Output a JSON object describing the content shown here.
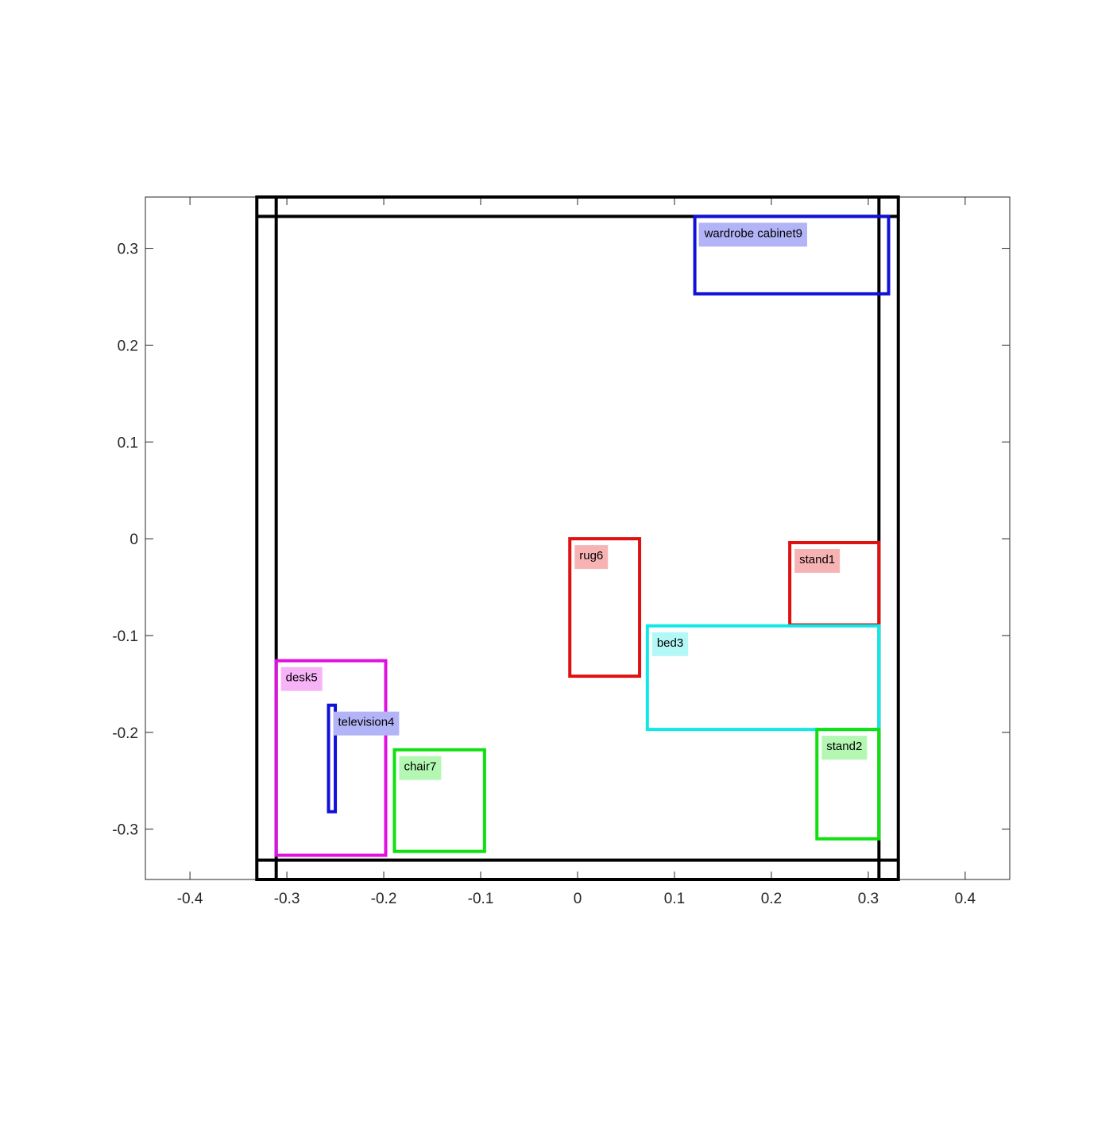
{
  "chart_data": {
    "type": "diagram",
    "title": "",
    "xlabel": "",
    "ylabel": "",
    "xlim": [
      -0.446,
      0.446
    ],
    "ylim": [
      -0.352,
      0.353
    ],
    "xticks": [
      -0.4,
      -0.3,
      -0.2,
      -0.1,
      0,
      0.1,
      0.2,
      0.3,
      0.4
    ],
    "yticks": [
      -0.3,
      -0.2,
      -0.1,
      0,
      0.1,
      0.2,
      0.3
    ],
    "xtick_labels": [
      "-0.4",
      "-0.3",
      "-0.2",
      "-0.1",
      "0",
      "0.1",
      "0.2",
      "0.3",
      "0.4"
    ],
    "ytick_labels": [
      "-0.3",
      "-0.2",
      "-0.1",
      "0",
      "0.1",
      "0.2",
      "0.3"
    ],
    "grid": false,
    "walls": {
      "color": "#000000",
      "outer": {
        "x": [
          -0.331,
          0.331
        ],
        "y": [
          -0.352,
          0.353
        ]
      },
      "inner": {
        "x": [
          -0.311,
          0.311
        ],
        "y": [
          -0.332,
          0.333
        ]
      }
    },
    "objects": [
      {
        "label": "wardrobe cabinet9",
        "color": "#1010d8",
        "label_bg": "#b3b3f7",
        "x": [
          0.121,
          0.321
        ],
        "y": [
          0.253,
          0.333
        ]
      },
      {
        "label": "rug6",
        "color": "#e01010",
        "label_bg": "#f7b3b3",
        "x": [
          -0.008,
          0.064
        ],
        "y": [
          -0.142,
          0.0
        ]
      },
      {
        "label": "stand1",
        "color": "#e01010",
        "label_bg": "#f7b3b3",
        "x": [
          0.219,
          0.311
        ],
        "y": [
          -0.089,
          -0.004
        ]
      },
      {
        "label": "bed3",
        "color": "#10e8e8",
        "label_bg": "#b3f7f7",
        "x": [
          0.072,
          0.311
        ],
        "y": [
          -0.197,
          -0.09
        ]
      },
      {
        "label": "stand2",
        "color": "#10e010",
        "label_bg": "#b3f7b3",
        "x": [
          0.247,
          0.311
        ],
        "y": [
          -0.31,
          -0.197
        ]
      },
      {
        "label": "desk5",
        "color": "#e010e0",
        "label_bg": "#f7b3f7",
        "x": [
          -0.311,
          -0.198
        ],
        "y": [
          -0.327,
          -0.126
        ]
      },
      {
        "label": "television4",
        "color": "#1010d8",
        "label_bg": "#b3b3f7",
        "x": [
          -0.257,
          -0.25
        ],
        "y": [
          -0.282,
          -0.172
        ]
      },
      {
        "label": "chair7",
        "color": "#10e010",
        "label_bg": "#b3f7b3",
        "x": [
          -0.189,
          -0.096
        ],
        "y": [
          -0.323,
          -0.218
        ]
      }
    ]
  }
}
